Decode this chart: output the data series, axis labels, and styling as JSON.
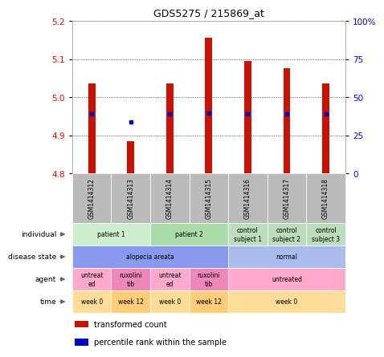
{
  "title": "GDS5275 / 215869_at",
  "samples": [
    "GSM1414312",
    "GSM1414313",
    "GSM1414314",
    "GSM1414315",
    "GSM1414316",
    "GSM1414317",
    "GSM1414318"
  ],
  "bar_values": [
    5.035,
    4.885,
    5.035,
    5.155,
    5.095,
    5.075,
    5.035
  ],
  "blue_dot_values": [
    4.955,
    4.935,
    4.955,
    4.958,
    4.955,
    4.955,
    4.955
  ],
  "ylim_left": [
    4.8,
    5.2
  ],
  "ylim_right": [
    0,
    100
  ],
  "yticks_left": [
    4.8,
    4.9,
    5.0,
    5.1,
    5.2
  ],
  "yticks_right": [
    0,
    25,
    50,
    75,
    100
  ],
  "ytick_labels_right": [
    "0",
    "25",
    "50",
    "75",
    "100%"
  ],
  "bar_color": "#cc1100",
  "dot_color": "#0000cc",
  "plot_bg": "#ffffff",
  "individual_groups": [
    {
      "label": "patient 1",
      "cols": [
        0,
        1
      ],
      "color": "#cceecc"
    },
    {
      "label": "patient 2",
      "cols": [
        2,
        3
      ],
      "color": "#aaddaa"
    },
    {
      "label": "control\nsubject 1",
      "cols": [
        4
      ],
      "color": "#bbddbb"
    },
    {
      "label": "control\nsubject 2",
      "cols": [
        5
      ],
      "color": "#bbddbb"
    },
    {
      "label": "control\nsubject 3",
      "cols": [
        6
      ],
      "color": "#bbddbb"
    }
  ],
  "disease_state_groups": [
    {
      "label": "alopecia areata",
      "cols": [
        0,
        1,
        2,
        3
      ],
      "color": "#8899ee"
    },
    {
      "label": "normal",
      "cols": [
        4,
        5,
        6
      ],
      "color": "#aabbee"
    }
  ],
  "agent_groups": [
    {
      "label": "untreat\ned",
      "cols": [
        0
      ],
      "color": "#ffaacc"
    },
    {
      "label": "ruxolini\ntib",
      "cols": [
        1
      ],
      "color": "#ee88bb"
    },
    {
      "label": "untreat\ned",
      "cols": [
        2
      ],
      "color": "#ffaacc"
    },
    {
      "label": "ruxolini\ntib",
      "cols": [
        3
      ],
      "color": "#ee88bb"
    },
    {
      "label": "untreated",
      "cols": [
        4,
        5,
        6
      ],
      "color": "#ffaacc"
    }
  ],
  "time_groups": [
    {
      "label": "week 0",
      "cols": [
        0
      ],
      "color": "#ffdd99"
    },
    {
      "label": "week 12",
      "cols": [
        1
      ],
      "color": "#ffcc77"
    },
    {
      "label": "week 0",
      "cols": [
        2
      ],
      "color": "#ffdd99"
    },
    {
      "label": "week 12",
      "cols": [
        3
      ],
      "color": "#ffcc77"
    },
    {
      "label": "week 0",
      "cols": [
        4,
        5,
        6
      ],
      "color": "#ffdd99"
    }
  ],
  "header_color": "#bbbbbb",
  "row_label_names": [
    "individual",
    "disease state",
    "agent",
    "time"
  ]
}
